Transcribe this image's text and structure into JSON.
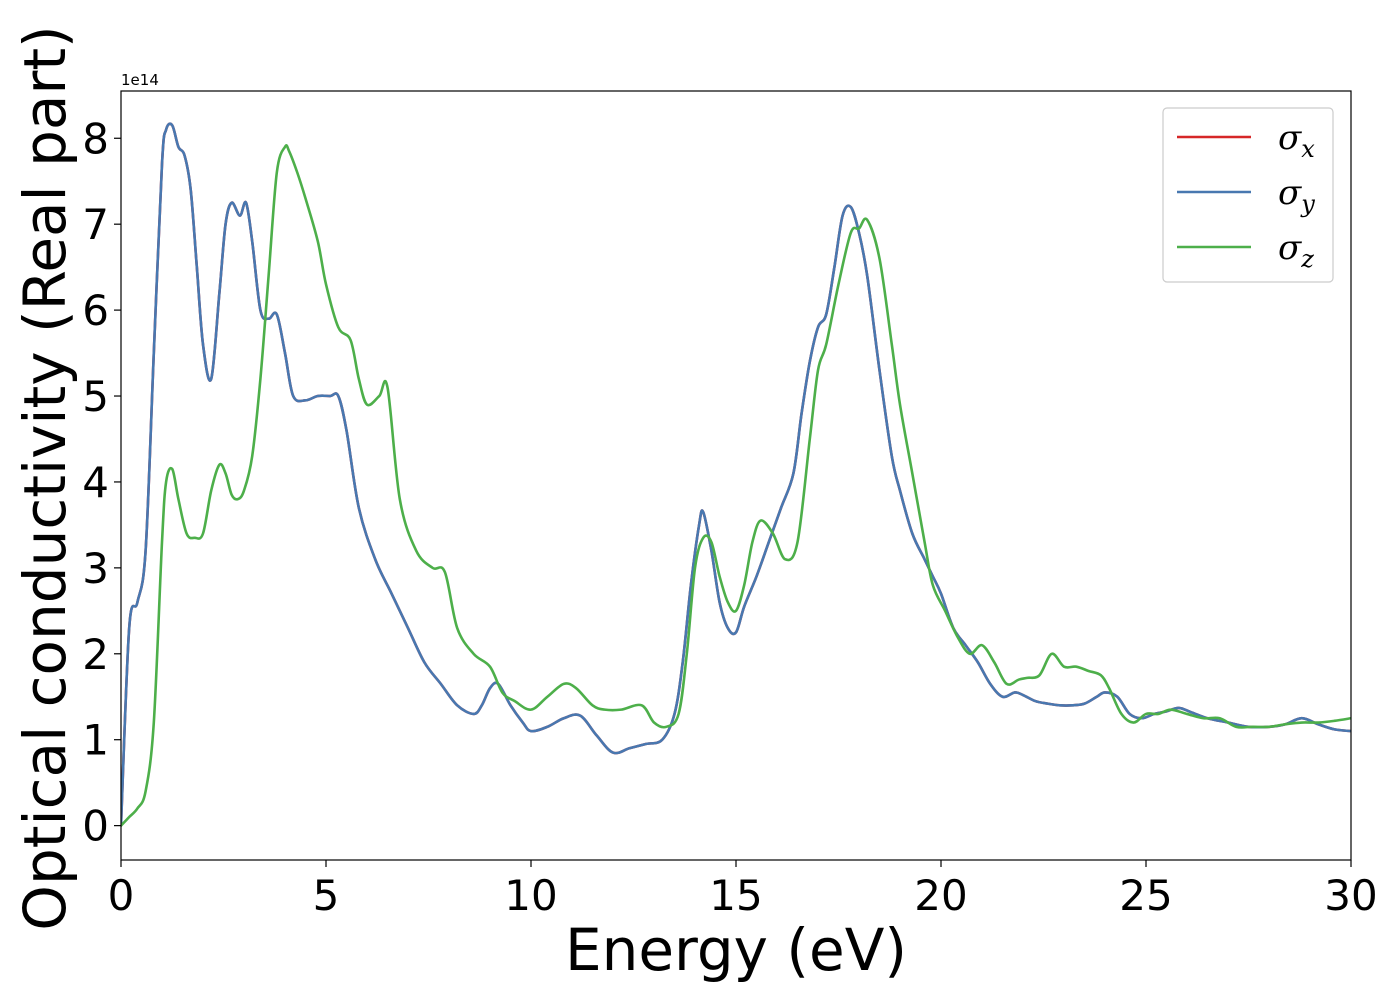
{
  "chart_data": {
    "type": "line",
    "title": "",
    "xlabel": "Energy (eV)",
    "ylabel": "Optical conductivity (Real part)",
    "y_offset_label": "1e14",
    "xlim": [
      0,
      30
    ],
    "ylim": [
      -0.4,
      8.55
    ],
    "xticks": [
      0,
      5,
      10,
      15,
      20,
      25,
      30
    ],
    "yticks": [
      0,
      1,
      2,
      3,
      4,
      5,
      6,
      7,
      8
    ],
    "grid": false,
    "legend_position": "top-right",
    "series": [
      {
        "name": "σx",
        "name_base": "σ",
        "name_sub": "x",
        "color": "#d62728",
        "x": [
          0,
          0.2,
          0.4,
          0.6,
          0.8,
          1.0,
          1.1,
          1.25,
          1.4,
          1.55,
          1.7,
          1.85,
          2.0,
          2.2,
          2.4,
          2.55,
          2.7,
          2.9,
          3.05,
          3.2,
          3.4,
          3.6,
          3.8,
          4.0,
          4.2,
          4.5,
          4.8,
          5.1,
          5.3,
          5.5,
          5.8,
          6.2,
          6.6,
          7.0,
          7.4,
          7.8,
          8.2,
          8.6,
          8.8,
          9.0,
          9.2,
          9.5,
          9.8,
          10.0,
          10.4,
          10.8,
          11.2,
          11.6,
          12.0,
          12.4,
          12.8,
          13.2,
          13.5,
          13.7,
          13.9,
          14.1,
          14.2,
          14.4,
          14.6,
          14.8,
          15.0,
          15.2,
          15.5,
          15.8,
          16.1,
          16.4,
          16.6,
          16.8,
          17.0,
          17.2,
          17.4,
          17.6,
          17.8,
          18.0,
          18.2,
          18.5,
          18.8,
          19.0,
          19.3,
          19.6,
          19.8,
          20.0,
          20.3,
          20.6,
          20.9,
          21.2,
          21.5,
          21.8,
          22.0,
          22.3,
          22.6,
          22.9,
          23.2,
          23.5,
          23.8,
          24.0,
          24.3,
          24.6,
          24.9,
          25.2,
          25.5,
          25.8,
          26.1,
          26.5,
          27.0,
          27.5,
          28.0,
          28.4,
          28.8,
          29.2,
          29.6,
          30.0
        ],
        "y": [
          0,
          2.3,
          2.6,
          3.2,
          5.5,
          7.7,
          8.1,
          8.15,
          7.9,
          7.8,
          7.4,
          6.5,
          5.6,
          5.2,
          6.2,
          7.0,
          7.25,
          7.1,
          7.25,
          6.8,
          6.0,
          5.9,
          5.95,
          5.5,
          5.0,
          4.95,
          5.0,
          5.0,
          5.0,
          4.6,
          3.7,
          3.1,
          2.7,
          2.3,
          1.9,
          1.65,
          1.4,
          1.3,
          1.4,
          1.6,
          1.65,
          1.4,
          1.2,
          1.1,
          1.15,
          1.25,
          1.28,
          1.05,
          0.85,
          0.9,
          0.95,
          1.0,
          1.3,
          1.9,
          2.8,
          3.5,
          3.65,
          3.2,
          2.6,
          2.3,
          2.25,
          2.55,
          2.9,
          3.3,
          3.7,
          4.1,
          4.8,
          5.4,
          5.8,
          5.95,
          6.5,
          7.1,
          7.2,
          6.9,
          6.4,
          5.3,
          4.3,
          3.9,
          3.4,
          3.1,
          2.9,
          2.7,
          2.3,
          2.1,
          1.9,
          1.65,
          1.5,
          1.55,
          1.52,
          1.45,
          1.42,
          1.4,
          1.4,
          1.42,
          1.5,
          1.55,
          1.5,
          1.3,
          1.25,
          1.3,
          1.33,
          1.37,
          1.32,
          1.25,
          1.2,
          1.15,
          1.15,
          1.18,
          1.25,
          1.18,
          1.12,
          1.1
        ]
      },
      {
        "name": "σy",
        "name_base": "σ",
        "name_sub": "y",
        "color": "#4878b0",
        "x": [
          0,
          0.2,
          0.4,
          0.6,
          0.8,
          1.0,
          1.1,
          1.25,
          1.4,
          1.55,
          1.7,
          1.85,
          2.0,
          2.2,
          2.4,
          2.55,
          2.7,
          2.9,
          3.05,
          3.2,
          3.4,
          3.6,
          3.8,
          4.0,
          4.2,
          4.5,
          4.8,
          5.1,
          5.3,
          5.5,
          5.8,
          6.2,
          6.6,
          7.0,
          7.4,
          7.8,
          8.2,
          8.6,
          8.8,
          9.0,
          9.2,
          9.5,
          9.8,
          10.0,
          10.4,
          10.8,
          11.2,
          11.6,
          12.0,
          12.4,
          12.8,
          13.2,
          13.5,
          13.7,
          13.9,
          14.1,
          14.2,
          14.4,
          14.6,
          14.8,
          15.0,
          15.2,
          15.5,
          15.8,
          16.1,
          16.4,
          16.6,
          16.8,
          17.0,
          17.2,
          17.4,
          17.6,
          17.8,
          18.0,
          18.2,
          18.5,
          18.8,
          19.0,
          19.3,
          19.6,
          19.8,
          20.0,
          20.3,
          20.6,
          20.9,
          21.2,
          21.5,
          21.8,
          22.0,
          22.3,
          22.6,
          22.9,
          23.2,
          23.5,
          23.8,
          24.0,
          24.3,
          24.6,
          24.9,
          25.2,
          25.5,
          25.8,
          26.1,
          26.5,
          27.0,
          27.5,
          28.0,
          28.4,
          28.8,
          29.2,
          29.6,
          30.0
        ],
        "y": [
          0,
          2.3,
          2.6,
          3.2,
          5.5,
          7.7,
          8.1,
          8.15,
          7.9,
          7.8,
          7.4,
          6.5,
          5.6,
          5.2,
          6.2,
          7.0,
          7.25,
          7.1,
          7.25,
          6.8,
          6.0,
          5.9,
          5.95,
          5.5,
          5.0,
          4.95,
          5.0,
          5.0,
          5.0,
          4.6,
          3.7,
          3.1,
          2.7,
          2.3,
          1.9,
          1.65,
          1.4,
          1.3,
          1.4,
          1.6,
          1.65,
          1.4,
          1.2,
          1.1,
          1.15,
          1.25,
          1.28,
          1.05,
          0.85,
          0.9,
          0.95,
          1.0,
          1.3,
          1.9,
          2.8,
          3.5,
          3.65,
          3.2,
          2.6,
          2.3,
          2.25,
          2.55,
          2.9,
          3.3,
          3.7,
          4.1,
          4.8,
          5.4,
          5.8,
          5.95,
          6.5,
          7.1,
          7.2,
          6.9,
          6.4,
          5.3,
          4.3,
          3.9,
          3.4,
          3.1,
          2.9,
          2.7,
          2.3,
          2.1,
          1.9,
          1.65,
          1.5,
          1.55,
          1.52,
          1.45,
          1.42,
          1.4,
          1.4,
          1.42,
          1.5,
          1.55,
          1.5,
          1.3,
          1.25,
          1.3,
          1.33,
          1.37,
          1.32,
          1.25,
          1.2,
          1.15,
          1.15,
          1.18,
          1.25,
          1.18,
          1.12,
          1.1
        ]
      },
      {
        "name": "σz",
        "name_base": "σ",
        "name_sub": "z",
        "color": "#4daf4a",
        "x": [
          0,
          0.2,
          0.4,
          0.6,
          0.8,
          1.0,
          1.1,
          1.25,
          1.4,
          1.6,
          1.8,
          2.0,
          2.2,
          2.4,
          2.55,
          2.7,
          2.85,
          3.0,
          3.2,
          3.4,
          3.6,
          3.8,
          4.0,
          4.1,
          4.3,
          4.5,
          4.8,
          5.0,
          5.3,
          5.6,
          5.8,
          6.0,
          6.3,
          6.5,
          6.8,
          7.2,
          7.6,
          7.9,
          8.2,
          8.6,
          9.0,
          9.3,
          9.6,
          10.0,
          10.4,
          10.8,
          11.1,
          11.5,
          11.8,
          12.2,
          12.7,
          13.0,
          13.3,
          13.6,
          13.8,
          14.0,
          14.2,
          14.4,
          14.6,
          14.8,
          15.0,
          15.2,
          15.4,
          15.6,
          15.9,
          16.2,
          16.5,
          16.8,
          17.0,
          17.2,
          17.5,
          17.8,
          18.0,
          18.2,
          18.5,
          18.8,
          19.0,
          19.3,
          19.6,
          19.8,
          20.1,
          20.4,
          20.7,
          21.0,
          21.3,
          21.6,
          21.9,
          22.1,
          22.4,
          22.7,
          23.0,
          23.3,
          23.6,
          23.9,
          24.1,
          24.4,
          24.7,
          25.0,
          25.3,
          25.6,
          26.0,
          26.4,
          26.8,
          27.2,
          27.6,
          28.0,
          28.4,
          28.8,
          29.2,
          29.6,
          30.0
        ],
        "y": [
          0,
          0.1,
          0.2,
          0.4,
          1.2,
          3.3,
          4.0,
          4.15,
          3.8,
          3.4,
          3.35,
          3.4,
          3.9,
          4.2,
          4.1,
          3.85,
          3.8,
          3.9,
          4.3,
          5.2,
          6.4,
          7.6,
          7.9,
          7.85,
          7.6,
          7.3,
          6.8,
          6.3,
          5.8,
          5.65,
          5.2,
          4.9,
          5.0,
          5.1,
          3.8,
          3.2,
          3.0,
          2.95,
          2.3,
          2.0,
          1.85,
          1.55,
          1.45,
          1.35,
          1.5,
          1.65,
          1.6,
          1.4,
          1.35,
          1.35,
          1.4,
          1.2,
          1.15,
          1.3,
          2.0,
          3.0,
          3.35,
          3.3,
          2.9,
          2.6,
          2.5,
          2.8,
          3.3,
          3.55,
          3.4,
          3.1,
          3.3,
          4.5,
          5.3,
          5.6,
          6.3,
          6.9,
          6.95,
          7.05,
          6.6,
          5.6,
          4.9,
          4.1,
          3.3,
          2.8,
          2.5,
          2.2,
          2.0,
          2.1,
          1.9,
          1.65,
          1.7,
          1.72,
          1.75,
          2.0,
          1.85,
          1.85,
          1.8,
          1.75,
          1.6,
          1.3,
          1.2,
          1.3,
          1.3,
          1.35,
          1.3,
          1.25,
          1.25,
          1.15,
          1.15,
          1.15,
          1.18,
          1.2,
          1.2,
          1.22,
          1.25
        ]
      }
    ]
  }
}
